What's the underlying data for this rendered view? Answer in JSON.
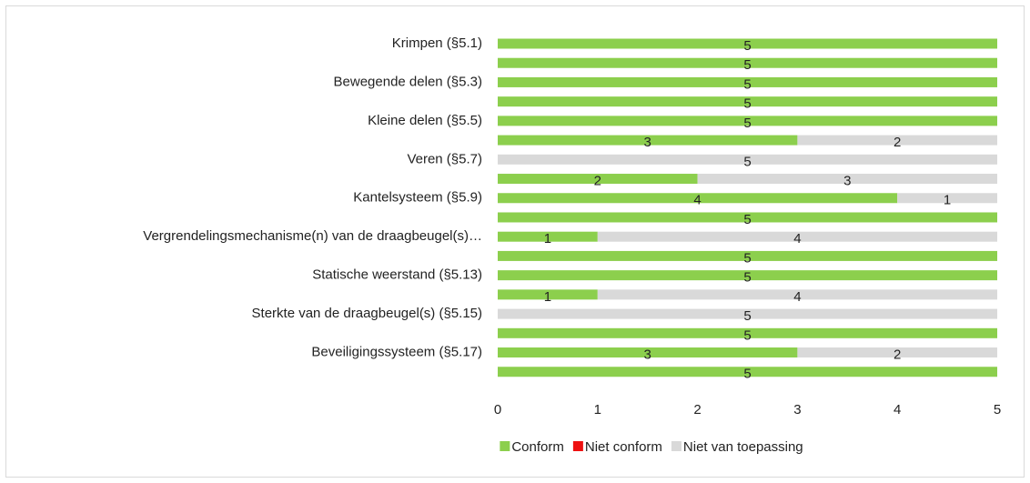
{
  "chart_data": {
    "type": "stacked-barh",
    "categories": [
      "Krimpen (§5.1)",
      null,
      "Bewegende delen (§5.3)",
      null,
      "Kleine delen (§5.5)",
      null,
      "Veren (§5.7)",
      null,
      "Kantelsysteem (§5.9)",
      null,
      "Vergrendelingsmechanisme(n) van de draagbeugel(s)…",
      null,
      "Statische weerstand (§5.13)",
      null,
      "Sterkte van de draagbeugel(s) (§5.15)",
      null,
      "Beveiligingssysteem (§5.17)",
      null
    ],
    "series": [
      {
        "name": "Conform",
        "color": "#8ccf4d",
        "values": [
          5,
          5,
          5,
          5,
          5,
          3,
          0,
          2,
          4,
          5,
          1,
          5,
          5,
          1,
          0,
          5,
          3,
          5
        ]
      },
      {
        "name": "Niet conform",
        "color": "#ee1111",
        "values": [
          0,
          0,
          0,
          0,
          0,
          0,
          0,
          0,
          0,
          0,
          0,
          0,
          0,
          0,
          0,
          0,
          0,
          0
        ]
      },
      {
        "name": "Niet van toepassing",
        "color": "#d9d9d9",
        "values": [
          0,
          0,
          0,
          0,
          0,
          2,
          5,
          3,
          1,
          0,
          4,
          0,
          0,
          4,
          5,
          0,
          2,
          0
        ]
      }
    ],
    "xlim": [
      0,
      5
    ],
    "xticks": [
      0,
      1,
      2,
      3,
      4,
      5
    ],
    "legend": "bottom"
  }
}
